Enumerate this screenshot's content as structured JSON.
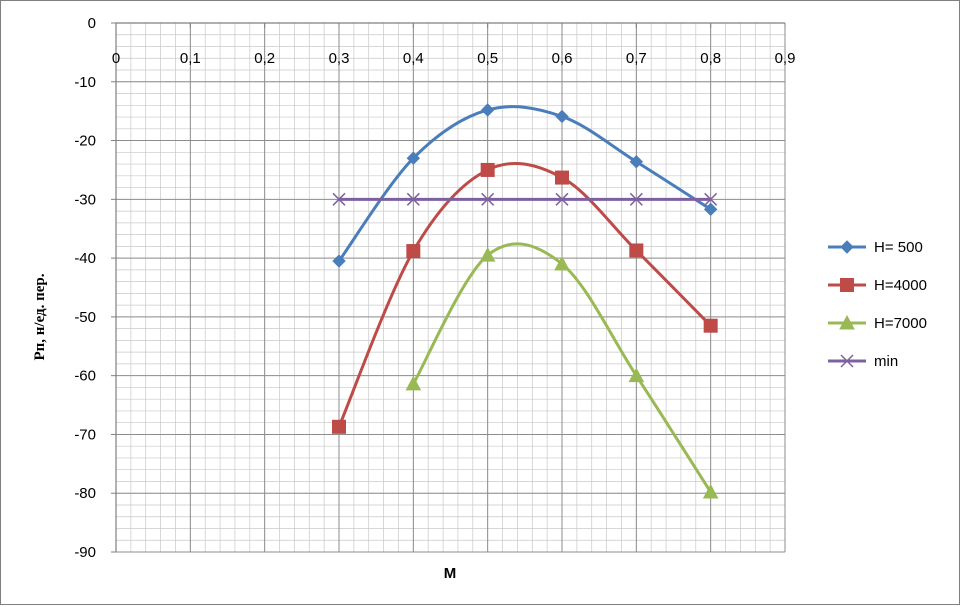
{
  "chart_data": {
    "type": "line",
    "xlabel": "M",
    "ylabel": "Pп, н/ед. пер.",
    "xlim": [
      0,
      0.9
    ],
    "ylim": [
      -90,
      0
    ],
    "x_ticks": [
      "0",
      "0,1",
      "0,2",
      "0,3",
      "0,4",
      "0,5",
      "0,6",
      "0,7",
      "0,8",
      "0,9"
    ],
    "y_ticks": [
      "0",
      "-10",
      "-20",
      "-30",
      "-40",
      "-50",
      "-60",
      "-70",
      "-80",
      "-90"
    ],
    "x_axis_position": "top",
    "grid": true,
    "minor_grid": true,
    "legend_position": "right",
    "smooth": true,
    "series": [
      {
        "name": "H= 500",
        "color": "#4a7ebb",
        "marker": "diamond",
        "x": [
          0.3,
          0.4,
          0.5,
          0.6,
          0.7,
          0.8
        ],
        "y": [
          -40.5,
          -23,
          -14.8,
          -15.9,
          -23.6,
          -31.7
        ]
      },
      {
        "name": "H=4000",
        "color": "#be4b48",
        "marker": "square",
        "x": [
          0.3,
          0.4,
          0.5,
          0.6,
          0.7,
          0.8
        ],
        "y": [
          -68.7,
          -38.8,
          -25,
          -26.3,
          -38.7,
          -51.5
        ]
      },
      {
        "name": "H=7000",
        "color": "#98b954",
        "marker": "triangle",
        "x": [
          0.4,
          0.5,
          0.6,
          0.7,
          0.8
        ],
        "y": [
          -61.4,
          -39.5,
          -41,
          -60,
          -79.8
        ]
      },
      {
        "name": "min",
        "color": "#7d60a0",
        "marker": "x",
        "x": [
          0.3,
          0.4,
          0.5,
          0.6,
          0.7,
          0.8
        ],
        "y": [
          -30,
          -30,
          -30,
          -30,
          -30,
          -30
        ]
      }
    ]
  }
}
